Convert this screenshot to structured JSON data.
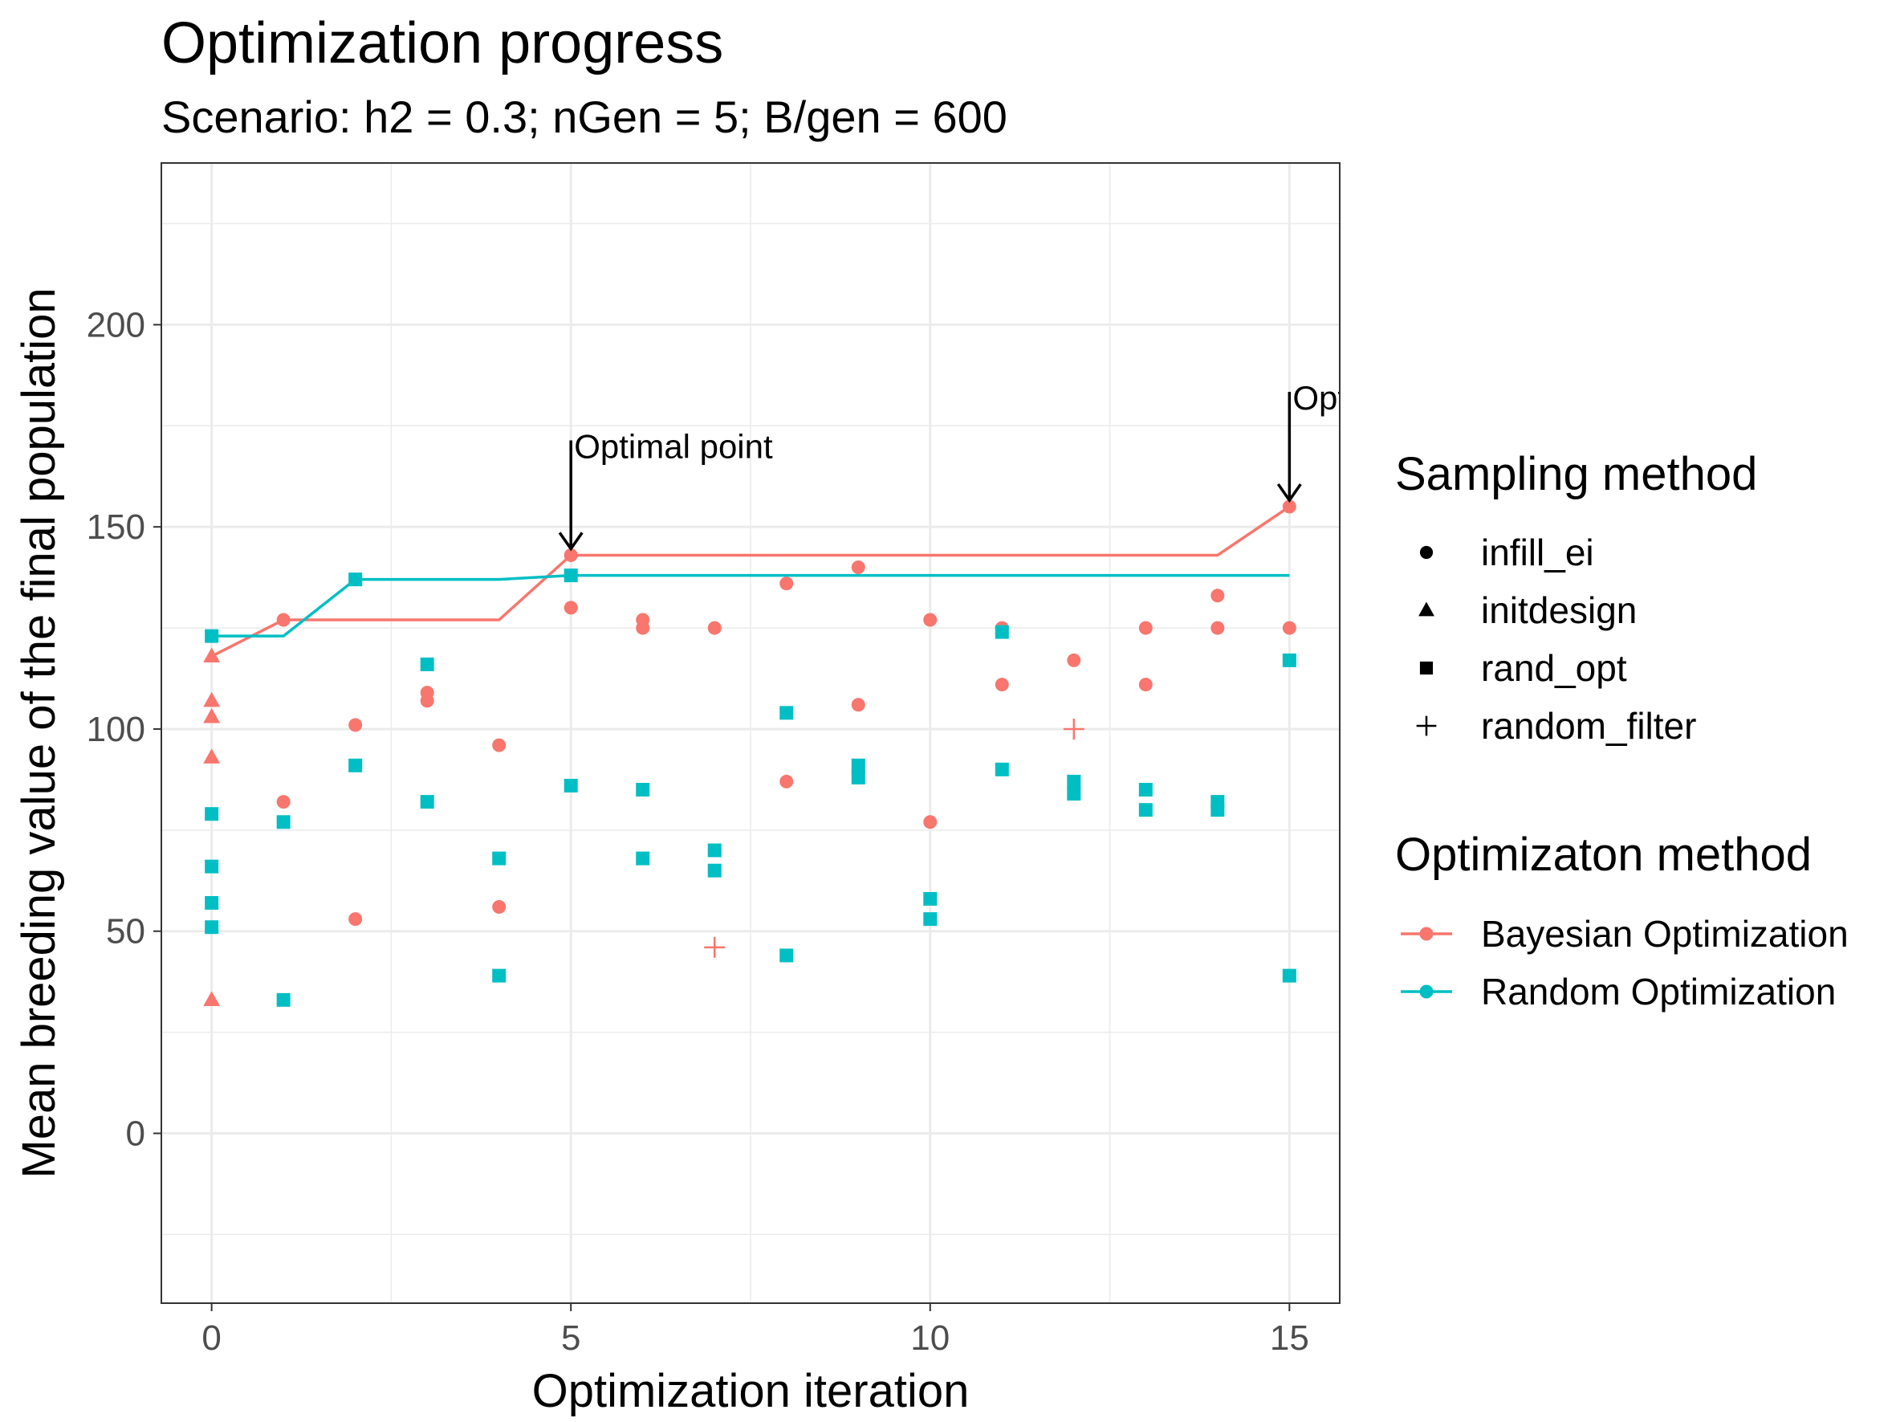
{
  "chart_data": {
    "type": "scatter",
    "title": "Optimization progress",
    "subtitle": "Scenario: h2 = 0.3; nGen = 5; B/gen = 600",
    "xlabel": "Optimization iteration",
    "ylabel": "Mean breeding value of the final population",
    "xlim": [
      -0.7,
      15.7
    ],
    "ylim": [
      -42,
      240
    ],
    "x_ticks": [
      0,
      5,
      10,
      15
    ],
    "y_ticks": [
      0,
      50,
      100,
      150,
      200
    ],
    "grid": true,
    "legend_position": "right",
    "shape_legend": {
      "title": "Sampling method",
      "entries": [
        {
          "label": "infill_ei",
          "shape": "circle"
        },
        {
          "label": "initdesign",
          "shape": "triangle"
        },
        {
          "label": "rand_opt",
          "shape": "square"
        },
        {
          "label": "random_filter",
          "shape": "plus"
        }
      ]
    },
    "color_legend": {
      "title": "Optimizaton method",
      "entries": [
        {
          "label": "Bayesian Optimization",
          "color": "#F8766D"
        },
        {
          "label": "Random Optimization",
          "color": "#00BFC4"
        }
      ]
    },
    "series": [
      {
        "name": "Bayesian Optimization",
        "color": "#F8766D",
        "best_so_far": {
          "x": [
            0,
            1,
            4,
            5,
            14,
            15
          ],
          "y": [
            118,
            127,
            127,
            143,
            143,
            155
          ]
        },
        "points": [
          {
            "x": 0,
            "y": 118,
            "shape": "triangle"
          },
          {
            "x": 0,
            "y": 107,
            "shape": "triangle"
          },
          {
            "x": 0,
            "y": 103,
            "shape": "triangle"
          },
          {
            "x": 0,
            "y": 93,
            "shape": "triangle"
          },
          {
            "x": 0,
            "y": 33,
            "shape": "triangle"
          },
          {
            "x": 1,
            "y": 127,
            "shape": "circle"
          },
          {
            "x": 1,
            "y": 82,
            "shape": "circle"
          },
          {
            "x": 2,
            "y": 101,
            "shape": "circle"
          },
          {
            "x": 2,
            "y": 53,
            "shape": "circle"
          },
          {
            "x": 3,
            "y": 109,
            "shape": "circle"
          },
          {
            "x": 3,
            "y": 107,
            "shape": "circle"
          },
          {
            "x": 4,
            "y": 96,
            "shape": "circle"
          },
          {
            "x": 4,
            "y": 56,
            "shape": "circle"
          },
          {
            "x": 5,
            "y": 143,
            "shape": "circle"
          },
          {
            "x": 5,
            "y": 130,
            "shape": "circle"
          },
          {
            "x": 6,
            "y": 127,
            "shape": "circle"
          },
          {
            "x": 6,
            "y": 125,
            "shape": "circle"
          },
          {
            "x": 7,
            "y": 125,
            "shape": "circle"
          },
          {
            "x": 7,
            "y": 46,
            "shape": "plus"
          },
          {
            "x": 8,
            "y": 136,
            "shape": "circle"
          },
          {
            "x": 8,
            "y": 87,
            "shape": "circle"
          },
          {
            "x": 9,
            "y": 140,
            "shape": "circle"
          },
          {
            "x": 9,
            "y": 106,
            "shape": "circle"
          },
          {
            "x": 10,
            "y": 127,
            "shape": "circle"
          },
          {
            "x": 10,
            "y": 77,
            "shape": "circle"
          },
          {
            "x": 11,
            "y": 125,
            "shape": "circle"
          },
          {
            "x": 11,
            "y": 111,
            "shape": "circle"
          },
          {
            "x": 12,
            "y": 117,
            "shape": "circle"
          },
          {
            "x": 12,
            "y": 100,
            "shape": "plus"
          },
          {
            "x": 13,
            "y": 125,
            "shape": "circle"
          },
          {
            "x": 13,
            "y": 111,
            "shape": "circle"
          },
          {
            "x": 14,
            "y": 133,
            "shape": "circle"
          },
          {
            "x": 14,
            "y": 125,
            "shape": "circle"
          },
          {
            "x": 15,
            "y": 155,
            "shape": "circle"
          },
          {
            "x": 15,
            "y": 125,
            "shape": "circle"
          }
        ]
      },
      {
        "name": "Random Optimization",
        "color": "#00BFC4",
        "best_so_far": {
          "x": [
            0,
            1,
            2,
            4,
            5,
            15
          ],
          "y": [
            123,
            123,
            137,
            137,
            138,
            138
          ]
        },
        "points": [
          {
            "x": 0,
            "y": 123,
            "shape": "square"
          },
          {
            "x": 0,
            "y": 79,
            "shape": "square"
          },
          {
            "x": 0,
            "y": 66,
            "shape": "square"
          },
          {
            "x": 0,
            "y": 57,
            "shape": "square"
          },
          {
            "x": 0,
            "y": 51,
            "shape": "square"
          },
          {
            "x": 1,
            "y": 77,
            "shape": "square"
          },
          {
            "x": 1,
            "y": 33,
            "shape": "square"
          },
          {
            "x": 2,
            "y": 137,
            "shape": "square"
          },
          {
            "x": 2,
            "y": 91,
            "shape": "square"
          },
          {
            "x": 3,
            "y": 116,
            "shape": "square"
          },
          {
            "x": 3,
            "y": 82,
            "shape": "square"
          },
          {
            "x": 4,
            "y": 68,
            "shape": "square"
          },
          {
            "x": 4,
            "y": 39,
            "shape": "square"
          },
          {
            "x": 5,
            "y": 138,
            "shape": "square"
          },
          {
            "x": 5,
            "y": 86,
            "shape": "square"
          },
          {
            "x": 6,
            "y": 85,
            "shape": "square"
          },
          {
            "x": 6,
            "y": 68,
            "shape": "square"
          },
          {
            "x": 7,
            "y": 70,
            "shape": "square"
          },
          {
            "x": 7,
            "y": 65,
            "shape": "square"
          },
          {
            "x": 8,
            "y": 104,
            "shape": "square"
          },
          {
            "x": 8,
            "y": 44,
            "shape": "square"
          },
          {
            "x": 9,
            "y": 91,
            "shape": "square"
          },
          {
            "x": 9,
            "y": 88,
            "shape": "square"
          },
          {
            "x": 10,
            "y": 58,
            "shape": "square"
          },
          {
            "x": 10,
            "y": 53,
            "shape": "square"
          },
          {
            "x": 11,
            "y": 124,
            "shape": "square"
          },
          {
            "x": 11,
            "y": 90,
            "shape": "square"
          },
          {
            "x": 12,
            "y": 87,
            "shape": "square"
          },
          {
            "x": 12,
            "y": 84,
            "shape": "square"
          },
          {
            "x": 13,
            "y": 85,
            "shape": "square"
          },
          {
            "x": 13,
            "y": 80,
            "shape": "square"
          },
          {
            "x": 14,
            "y": 82,
            "shape": "square"
          },
          {
            "x": 14,
            "y": 80,
            "shape": "square"
          },
          {
            "x": 15,
            "y": 117,
            "shape": "square"
          },
          {
            "x": 15,
            "y": 39,
            "shape": "square"
          }
        ]
      }
    ],
    "annotations": [
      {
        "x": 5,
        "y": 143,
        "label": "Optimal point"
      },
      {
        "x": 15,
        "y": 155,
        "label": "Opt"
      }
    ]
  }
}
